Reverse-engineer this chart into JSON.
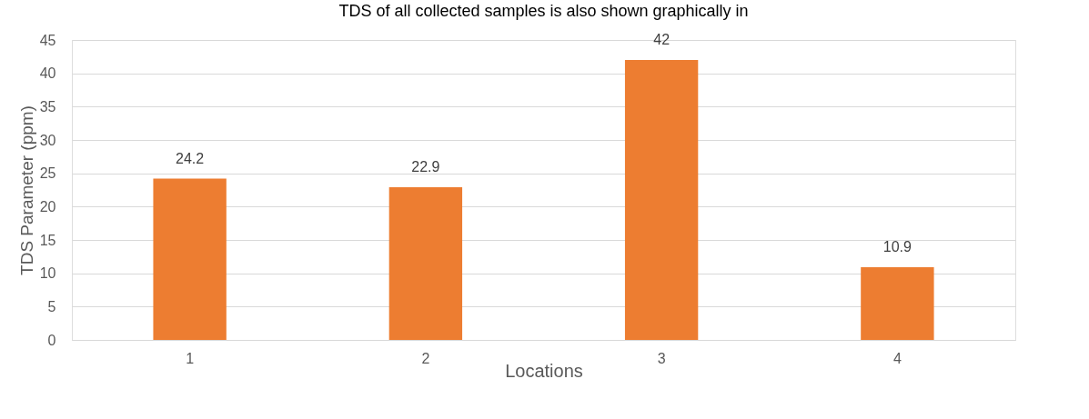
{
  "chart_data": {
    "type": "bar",
    "title": "TDS of all collected samples is also shown graphically in",
    "xlabel": "Locations",
    "ylabel": "TDS Parameter (ppm)",
    "categories": [
      "1",
      "2",
      "3",
      "4"
    ],
    "values": [
      24.2,
      22.9,
      42,
      10.9
    ],
    "color": "#ed7d31",
    "ylim": [
      0,
      45
    ],
    "yticks": [
      0,
      5,
      10,
      15,
      20,
      25,
      30,
      35,
      40,
      45
    ],
    "grid": "y",
    "data_labels": true
  }
}
